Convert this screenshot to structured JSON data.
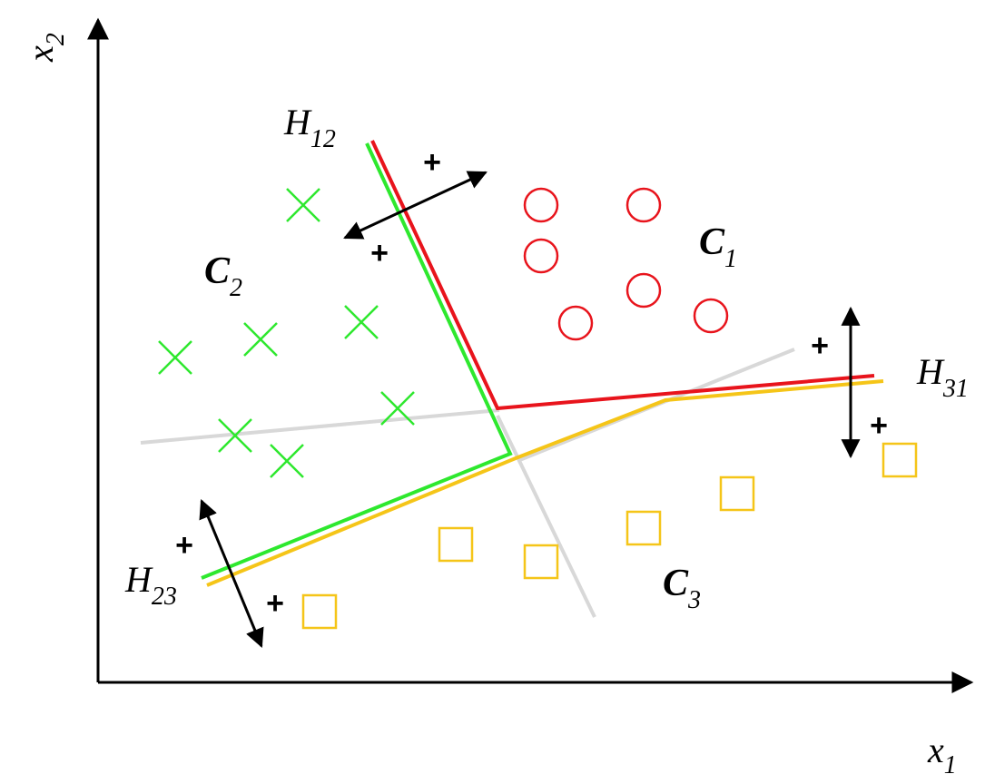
{
  "axes": {
    "x_label": "x",
    "x_sub": "1",
    "y_label": "x",
    "y_sub": "2"
  },
  "hyperplanes": [
    {
      "name": "H",
      "sub": "12"
    },
    {
      "name": "H",
      "sub": "23"
    },
    {
      "name": "H",
      "sub": "31"
    }
  ],
  "classes": [
    {
      "name": "C",
      "sub": "1",
      "marker": "circle",
      "color": "#e8141c"
    },
    {
      "name": "C",
      "sub": "2",
      "marker": "x",
      "color": "#2ee82e"
    },
    {
      "name": "C",
      "sub": "3",
      "marker": "square",
      "color": "#f5c518"
    }
  ],
  "plus_sign": "+",
  "colors": {
    "h12_boundary": "#e8141c",
    "c2_boundary": "#2ee82e",
    "c3_boundary": "#f5c518",
    "extension": "#d8d8d8",
    "axis": "#000000"
  }
}
